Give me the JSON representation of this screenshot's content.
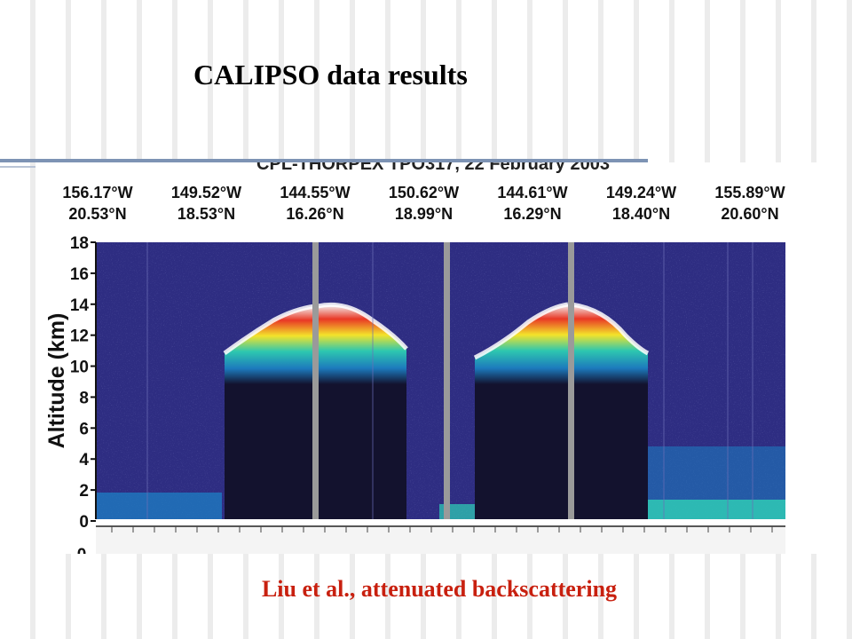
{
  "slide": {
    "title": "CALIPSO data results",
    "caption": "Liu et al., attenuated backscattering"
  },
  "chart_data": {
    "type": "heatmap",
    "title": "CPL-THORPEX TPO317, 22 February 2003",
    "ylabel": "Altitude (km)",
    "ylim": [
      0,
      18
    ],
    "y_ticks": [
      0,
      2,
      4,
      6,
      8,
      10,
      12,
      14,
      16,
      18
    ],
    "x_ticks": [
      {
        "lon": "156.17°W",
        "lat": "20.53°N"
      },
      {
        "lon": "149.52°W",
        "lat": "18.53°N"
      },
      {
        "lon": "144.55°W",
        "lat": "16.26°N"
      },
      {
        "lon": "150.62°W",
        "lat": "18.99°N"
      },
      {
        "lon": "144.61°W",
        "lat": "16.29°N"
      },
      {
        "lon": "149.24°W",
        "lat": "18.40°N"
      },
      {
        "lon": "155.89°W",
        "lat": "20.60°N"
      }
    ],
    "colors": {
      "background": "#2e2d82",
      "attenuated": "#13122e",
      "weak": "#1d7fc4",
      "moderate": "#2fd1b6",
      "strong": "#ffee2a",
      "very_strong": "#f43a25",
      "saturated": "#ffffff"
    }
  }
}
